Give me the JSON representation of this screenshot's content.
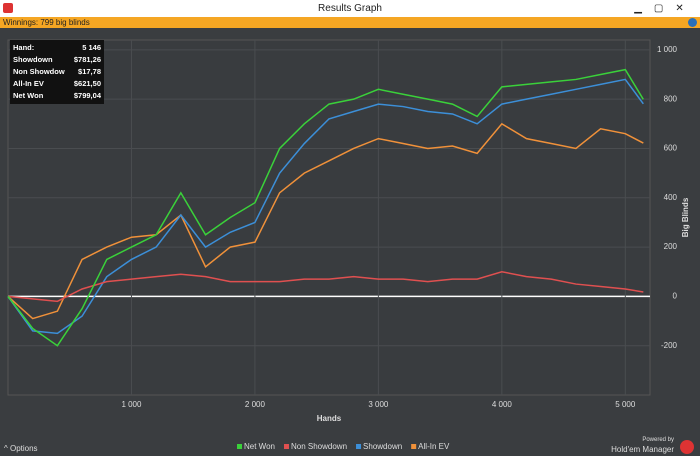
{
  "window": {
    "title": "Results Graph",
    "winnings": "Winnings: 799 big blinds",
    "options": "Options",
    "powered": "Powered by",
    "brand": "Hold'em Manager"
  },
  "stats": [
    [
      "Hand:",
      "5 146"
    ],
    [
      "Showdown",
      "$781,26"
    ],
    [
      "Non Showdow",
      "$17,78"
    ],
    [
      "All-In EV",
      "$621,50"
    ],
    [
      "Net Won",
      "$799,04"
    ]
  ],
  "chart_data": {
    "type": "line",
    "x_label": "Hands",
    "y_label": "Big Blinds",
    "x": [
      0,
      200,
      400,
      600,
      800,
      1000,
      1200,
      1400,
      1600,
      1800,
      2000,
      2200,
      2400,
      2600,
      2800,
      3000,
      3200,
      3400,
      3600,
      3800,
      4000,
      4200,
      4400,
      4600,
      4800,
      5000,
      5146
    ],
    "series": [
      {
        "name": "Net Won",
        "color": "#3ad13a",
        "values": [
          0,
          -130,
          -200,
          -50,
          150,
          200,
          250,
          420,
          250,
          320,
          380,
          600,
          700,
          780,
          800,
          840,
          820,
          800,
          780,
          730,
          850,
          860,
          870,
          880,
          900,
          920,
          799
        ]
      },
      {
        "name": "Non Showdown",
        "color": "#e05050",
        "values": [
          0,
          -10,
          -20,
          30,
          60,
          70,
          80,
          90,
          80,
          60,
          60,
          60,
          70,
          70,
          80,
          70,
          70,
          60,
          70,
          70,
          100,
          80,
          70,
          50,
          40,
          30,
          18
        ]
      },
      {
        "name": "Showdown",
        "color": "#3c8fd8",
        "values": [
          0,
          -140,
          -150,
          -80,
          80,
          150,
          200,
          330,
          200,
          260,
          300,
          500,
          620,
          720,
          750,
          780,
          770,
          750,
          740,
          700,
          780,
          800,
          820,
          840,
          860,
          880,
          781
        ]
      },
      {
        "name": "All-In EV",
        "color": "#f0913a",
        "values": [
          0,
          -90,
          -60,
          150,
          200,
          240,
          250,
          330,
          120,
          200,
          220,
          420,
          500,
          550,
          600,
          640,
          620,
          600,
          610,
          580,
          700,
          640,
          620,
          600,
          680,
          660,
          622
        ]
      }
    ],
    "xlim": [
      0,
      5200
    ],
    "xticks": [
      {
        "value": 1000,
        "label": "1 000"
      },
      {
        "value": 2000,
        "label": "2 000"
      },
      {
        "value": 3000,
        "label": "3 000"
      },
      {
        "value": 4000,
        "label": "4 000"
      },
      {
        "value": 5000,
        "label": "5 000"
      }
    ],
    "ylim": [
      -400,
      1040
    ],
    "yticks": [
      {
        "value": 1000,
        "label": "1 000"
      },
      800,
      600,
      400,
      200,
      0,
      -200
    ],
    "grid": true
  }
}
